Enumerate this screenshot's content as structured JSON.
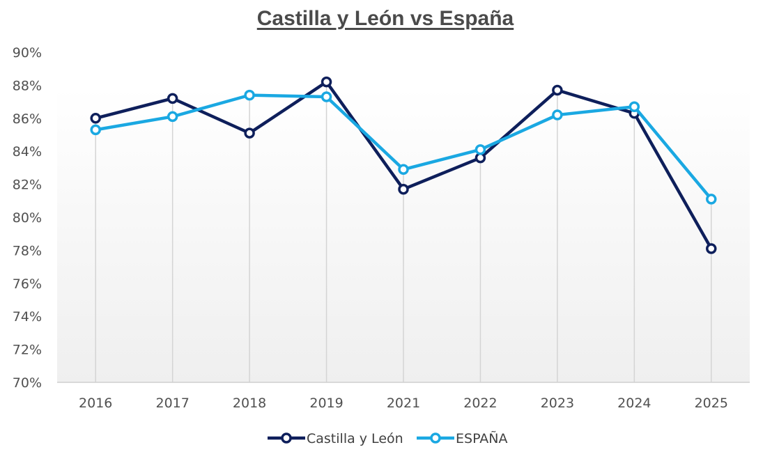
{
  "chart_data": {
    "type": "line",
    "title": "Castilla y León vs España",
    "xlabel": "",
    "ylabel": "",
    "categories": [
      "2016",
      "2017",
      "2018",
      "2019",
      "2021",
      "2022",
      "2023",
      "2024",
      "2025"
    ],
    "ylim": [
      70,
      90
    ],
    "yticks": [
      70,
      72,
      74,
      76,
      78,
      80,
      82,
      84,
      86,
      88,
      90
    ],
    "ytick_suffix": "%",
    "grid": "vertical",
    "legend_position": "bottom",
    "series": [
      {
        "name": "Castilla y León",
        "color": "#0e1f5b",
        "values": [
          86.0,
          87.2,
          85.1,
          88.2,
          81.7,
          83.6,
          87.7,
          86.3,
          78.1
        ]
      },
      {
        "name": "ESPAÑA",
        "color": "#1aa8e2",
        "values": [
          85.3,
          86.1,
          87.4,
          87.3,
          82.9,
          84.1,
          86.2,
          86.7,
          81.1
        ]
      }
    ]
  }
}
